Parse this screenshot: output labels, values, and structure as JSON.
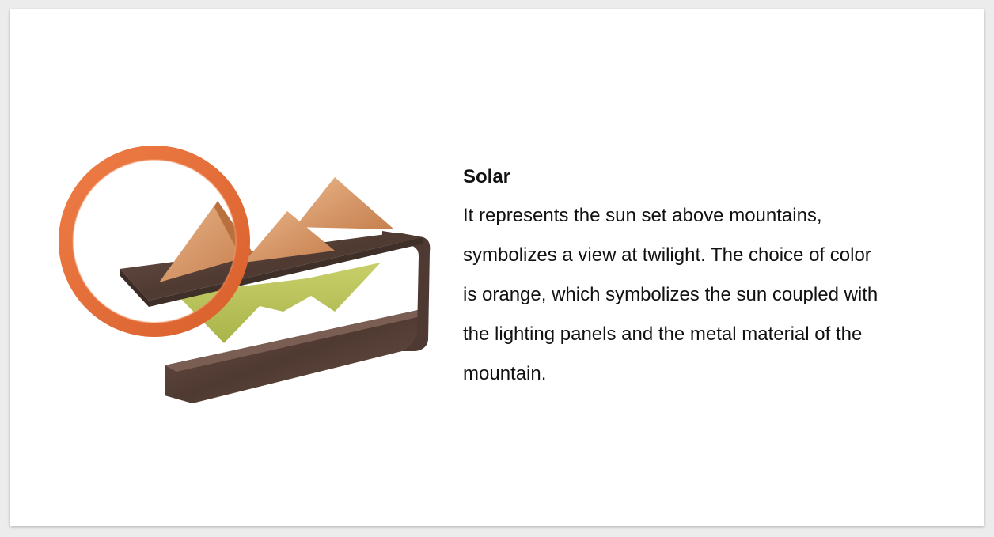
{
  "product": {
    "title": "Solar",
    "description_lines": [
      "It represents the sun set above mountains,",
      "symbolizes a view at twilight. The choice of color",
      "is orange, which symbolizes the sun coupled with",
      "the lighting panels and the metal material of the",
      "mountain."
    ]
  },
  "colors": {
    "ring": "#e8703a",
    "wood": "#5a4239",
    "copper": "#d99b6a",
    "green": "#b9c25a"
  }
}
